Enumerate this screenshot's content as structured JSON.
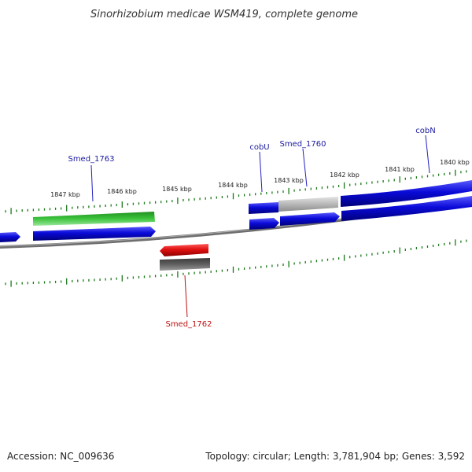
{
  "title": "Sinorhizobium medicae WSM419, complete genome",
  "footer": {
    "accession": "Accession: NC_009636",
    "topology": "Topology: circular; Length: 3,781,904 bp; Genes: 3,592"
  },
  "scale_labels": [
    "1847 kbp",
    "1846 kbp",
    "1845 kbp",
    "1844 kbp",
    "1843 kbp",
    "1842 kbp",
    "1841 kbp",
    "1840 kbp"
  ],
  "gene_labels": [
    {
      "text": "Smed_1763",
      "strand": "forward"
    },
    {
      "text": "cobU",
      "strand": "forward"
    },
    {
      "text": "Smed_1760",
      "strand": "forward"
    },
    {
      "text": "cobN",
      "strand": "forward"
    },
    {
      "text": "Smed_1762",
      "strand": "reverse"
    }
  ],
  "colors": {
    "forward_cds": "#0a0ad8",
    "reverse_cds": "#e01010",
    "gene_green": "#2fb82f",
    "gene_grey_light": "#b8b8b8",
    "gene_grey_dark": "#5a5a5a",
    "backbone": "#777777",
    "tick": "#1a7a1a",
    "forward_label": "#1a1aa0",
    "reverse_label": "#c01010"
  }
}
